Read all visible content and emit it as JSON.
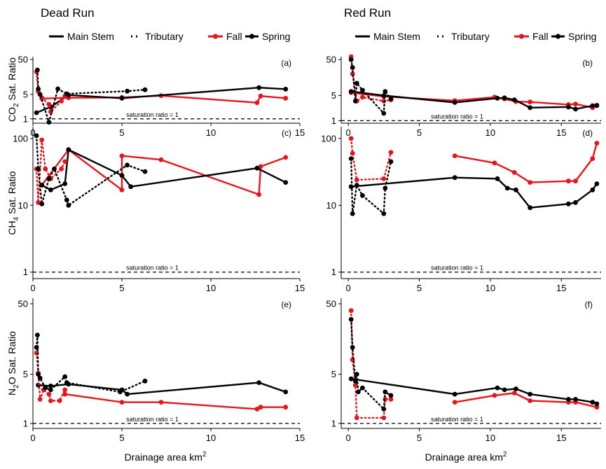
{
  "columns": [
    {
      "title": "Dead Run"
    },
    {
      "title": "Red Run"
    }
  ],
  "legend": {
    "main_stem": "Main Stem",
    "tributary": "Tributary",
    "fall": "Fall",
    "spring": "Spring"
  },
  "colors": {
    "fall": "#e8141b",
    "spring": "#000000"
  },
  "reference_label": "saturation ratio = 1",
  "xlabel": "Drainage area km",
  "xlabel_sup": "2",
  "ylabels": [
    {
      "pre": "CO",
      "sub": "2",
      "post": " Sat. Ratio"
    },
    {
      "pre": "CH",
      "sub": "4",
      "post": " Sat. Ratio"
    },
    {
      "pre": "N",
      "sub": "2",
      "post": "O Sat. Ratio"
    }
  ],
  "chart_data": [
    {
      "type": "line",
      "panel": "(a)",
      "site": "Dead Run",
      "gas": "CO2",
      "y_scale": "log",
      "yticks": [
        1,
        5,
        50
      ],
      "xticks": [
        0,
        5,
        10,
        15
      ],
      "xlim": [
        0,
        15
      ],
      "ylim": [
        0.75,
        60
      ],
      "series": [
        {
          "name": "Fall",
          "reach": "Main Stem",
          "points": [
            [
              0.5,
              3.8
            ],
            [
              2.0,
              4.0
            ],
            [
              5.0,
              4.1
            ],
            [
              7.2,
              4.6
            ],
            [
              12.6,
              2.9
            ],
            [
              12.8,
              4.5
            ],
            [
              14.2,
              3.9
            ]
          ]
        },
        {
          "name": "Spring",
          "reach": "Main Stem",
          "points": [
            [
              0.2,
              1.5
            ],
            [
              1.0,
              2.2
            ],
            [
              2.0,
              4.8
            ],
            [
              5.0,
              3.9
            ],
            [
              12.7,
              7.8
            ],
            [
              14.2,
              7.1
            ]
          ]
        },
        {
          "name": "Fall",
          "reach": "Tributary",
          "points": [
            [
              0.2,
              22
            ],
            [
              0.3,
              6.0
            ],
            [
              0.5,
              4.0
            ],
            [
              0.9,
              2.6
            ],
            [
              1.0,
              1.6
            ],
            [
              1.6,
              3.2
            ],
            [
              1.8,
              4.5
            ]
          ]
        },
        {
          "name": "Spring",
          "reach": "Tributary",
          "points": [
            [
              0.25,
              25
            ],
            [
              0.3,
              7.2
            ],
            [
              0.4,
              5.0
            ],
            [
              0.9,
              0.8
            ],
            [
              1.4,
              7.2
            ],
            [
              1.9,
              5.2
            ],
            [
              5.3,
              6.2
            ],
            [
              6.3,
              6.8
            ]
          ]
        }
      ]
    },
    {
      "type": "line",
      "panel": "(b)",
      "site": "Red Run",
      "gas": "CO2",
      "y_scale": "log",
      "yticks": [
        1,
        5,
        50
      ],
      "xticks": [
        0,
        5,
        10,
        15
      ],
      "xlim": [
        -0.5,
        17.8
      ],
      "ylim": [
        0.85,
        60
      ],
      "series": [
        {
          "name": "Fall",
          "reach": "Main Stem",
          "points": [
            [
              0.2,
              6.0
            ],
            [
              2.5,
              4.7
            ],
            [
              7.5,
              3.6
            ],
            [
              10.3,
              4.5
            ],
            [
              11.0,
              4.0
            ],
            [
              11.8,
              3.4
            ],
            [
              12.8,
              3.3
            ],
            [
              15.5,
              2.8
            ],
            [
              16.0,
              2.9
            ],
            [
              17.2,
              2.3
            ],
            [
              17.5,
              2.7
            ]
          ]
        },
        {
          "name": "Spring",
          "reach": "Main Stem",
          "points": [
            [
              0.2,
              6.5
            ],
            [
              2.5,
              5.0
            ],
            [
              7.5,
              3.2
            ],
            [
              10.5,
              4.2
            ],
            [
              11.0,
              4.3
            ],
            [
              11.7,
              3.8
            ],
            [
              12.8,
              2.3
            ],
            [
              15.5,
              2.4
            ],
            [
              16.0,
              2.1
            ],
            [
              17.2,
              2.6
            ],
            [
              17.5,
              2.6
            ]
          ]
        },
        {
          "name": "Fall",
          "reach": "Tributary",
          "points": [
            [
              0.2,
              60
            ],
            [
              0.3,
              20
            ],
            [
              0.6,
              3.5
            ],
            [
              1.0,
              4.5
            ],
            [
              2.5,
              3.5
            ],
            [
              3.0,
              3.8
            ]
          ]
        },
        {
          "name": "Spring",
          "reach": "Tributary",
          "points": [
            [
              0.2,
              50
            ],
            [
              0.3,
              30
            ],
            [
              0.5,
              3.5
            ],
            [
              0.6,
              11
            ],
            [
              1.0,
              7.0
            ],
            [
              2.5,
              1.6
            ],
            [
              2.6,
              6.5
            ],
            [
              3.0,
              4.0
            ]
          ]
        }
      ]
    },
    {
      "type": "line",
      "panel": "(c)",
      "site": "Dead Run",
      "gas": "CH4",
      "y_scale": "log",
      "yticks": [
        1,
        10,
        100
      ],
      "xticks": [
        0,
        5,
        10,
        15
      ],
      "xlim": [
        0,
        15
      ],
      "ylim": [
        0.8,
        150
      ],
      "series": [
        {
          "name": "Fall",
          "reach": "Main Stem",
          "points": [
            [
              0.5,
              20
            ],
            [
              2.0,
              68
            ],
            [
              5.0,
              17
            ],
            [
              5.0,
              55
            ],
            [
              7.2,
              48
            ],
            [
              12.7,
              14.5
            ],
            [
              12.8,
              38
            ],
            [
              14.2,
              52
            ]
          ]
        },
        {
          "name": "Spring",
          "reach": "Main Stem",
          "points": [
            [
              0.5,
              20
            ],
            [
              1.0,
              17
            ],
            [
              1.8,
              21
            ],
            [
              2.0,
              68
            ],
            [
              5.0,
              28
            ],
            [
              5.5,
              19
            ],
            [
              12.6,
              36
            ],
            [
              14.2,
              22
            ]
          ]
        },
        {
          "name": "Fall",
          "reach": "Tributary",
          "points": [
            [
              0.2,
              35
            ],
            [
              0.3,
              11
            ],
            [
              0.5,
              95
            ],
            [
              0.7,
              35
            ],
            [
              1.0,
              25
            ],
            [
              1.6,
              35
            ],
            [
              1.8,
              45
            ]
          ]
        },
        {
          "name": "Spring",
          "reach": "Tributary",
          "points": [
            [
              0.2,
              110
            ],
            [
              0.3,
              35
            ],
            [
              0.5,
              10.5
            ],
            [
              0.9,
              25
            ],
            [
              1.2,
              35
            ],
            [
              1.9,
              12
            ],
            [
              2.0,
              10
            ],
            [
              5.3,
              40
            ],
            [
              6.3,
              32
            ]
          ]
        }
      ]
    },
    {
      "type": "line",
      "panel": "(d)",
      "site": "Red Run",
      "gas": "CH4",
      "y_scale": "log",
      "yticks": [
        1,
        10,
        100
      ],
      "xticks": [
        0,
        5,
        10,
        15
      ],
      "xlim": [
        -0.5,
        17.8
      ],
      "ylim": [
        0.8,
        150
      ],
      "series": [
        {
          "name": "Fall",
          "reach": "Main Stem",
          "points": [
            [
              7.5,
              55
            ],
            [
              10.3,
              43
            ],
            [
              11.7,
              31
            ],
            [
              12.8,
              22
            ],
            [
              15.5,
              23
            ],
            [
              16.0,
              23
            ],
            [
              17.2,
              50
            ],
            [
              17.5,
              85
            ]
          ]
        },
        {
          "name": "Spring",
          "reach": "Main Stem",
          "points": [
            [
              0.2,
              19
            ],
            [
              7.5,
              26
            ],
            [
              10.5,
              25
            ],
            [
              11.2,
              18
            ],
            [
              11.8,
              17
            ],
            [
              12.8,
              9.2
            ],
            [
              15.5,
              10.5
            ],
            [
              16.0,
              11
            ],
            [
              17.2,
              17
            ],
            [
              17.5,
              21
            ]
          ]
        },
        {
          "name": "Fall",
          "reach": "Tributary",
          "points": [
            [
              0.2,
              100
            ],
            [
              0.3,
              60
            ],
            [
              0.6,
              24
            ],
            [
              2.5,
              25
            ],
            [
              3.0,
              62
            ]
          ]
        },
        {
          "name": "Spring",
          "reach": "Tributary",
          "points": [
            [
              0.2,
              50
            ],
            [
              0.3,
              7.5
            ],
            [
              0.6,
              20
            ],
            [
              1.0,
              14
            ],
            [
              2.5,
              7.5
            ],
            [
              2.6,
              18
            ],
            [
              3.0,
              45
            ]
          ]
        }
      ]
    },
    {
      "type": "line",
      "panel": "(e)",
      "site": "Dead Run",
      "gas": "N2O",
      "y_scale": "log",
      "yticks": [
        1,
        5,
        50
      ],
      "xticks": [
        0,
        5,
        10,
        15
      ],
      "xlim": [
        0,
        15
      ],
      "ylim": [
        0.85,
        60
      ],
      "series": [
        {
          "name": "Fall",
          "reach": "Main Stem",
          "points": [
            [
              1.8,
              2.6
            ],
            [
              5.0,
              2.0
            ],
            [
              7.2,
              2.0
            ],
            [
              12.6,
              1.6
            ],
            [
              12.8,
              1.7
            ],
            [
              14.2,
              1.7
            ]
          ]
        },
        {
          "name": "Spring",
          "reach": "Main Stem",
          "points": [
            [
              0.3,
              3.5
            ],
            [
              1.0,
              3.4
            ],
            [
              2.0,
              3.6
            ],
            [
              5.0,
              3.0
            ],
            [
              5.3,
              2.6
            ],
            [
              12.7,
              3.8
            ],
            [
              14.2,
              2.8
            ]
          ]
        },
        {
          "name": "Fall",
          "reach": "Tributary",
          "points": [
            [
              0.2,
              10
            ],
            [
              0.3,
              5.2
            ],
            [
              0.4,
              2.2
            ],
            [
              0.6,
              3.0
            ],
            [
              0.9,
              2.6
            ],
            [
              1.0,
              2.1
            ],
            [
              1.5,
              2.1
            ],
            [
              1.8,
              3.0
            ]
          ]
        },
        {
          "name": "Spring",
          "reach": "Tributary",
          "points": [
            [
              0.2,
              12
            ],
            [
              0.25,
              18
            ],
            [
              0.3,
              5.0
            ],
            [
              0.4,
              4.4
            ],
            [
              0.7,
              3.2
            ],
            [
              1.0,
              3.0
            ],
            [
              1.8,
              4.6
            ],
            [
              1.9,
              3.8
            ],
            [
              4.9,
              2.8
            ],
            [
              6.3,
              4.0
            ]
          ]
        }
      ]
    },
    {
      "type": "line",
      "panel": "(f)",
      "site": "Red Run",
      "gas": "N2O",
      "y_scale": "log",
      "yticks": [
        1,
        5,
        50
      ],
      "xticks": [
        0,
        5,
        10,
        15
      ],
      "xlim": [
        -0.5,
        17.8
      ],
      "ylim": [
        0.85,
        60
      ],
      "series": [
        {
          "name": "Fall",
          "reach": "Main Stem",
          "points": [
            [
              7.5,
              2.0
            ],
            [
              10.3,
              2.5
            ],
            [
              11.7,
              2.7
            ],
            [
              12.8,
              2.1
            ],
            [
              15.5,
              2.0
            ],
            [
              16.0,
              2.0
            ],
            [
              17.5,
              1.7
            ]
          ]
        },
        {
          "name": "Spring",
          "reach": "Main Stem",
          "points": [
            [
              0.2,
              4.3
            ],
            [
              7.5,
              2.6
            ],
            [
              10.5,
              3.2
            ],
            [
              11.0,
              3.0
            ],
            [
              11.8,
              3.1
            ],
            [
              12.8,
              2.6
            ],
            [
              15.5,
              2.2
            ],
            [
              16.0,
              2.2
            ],
            [
              17.2,
              2.0
            ],
            [
              17.5,
              1.9
            ]
          ]
        },
        {
          "name": "Fall",
          "reach": "Tributary",
          "points": [
            [
              0.2,
              40
            ],
            [
              0.3,
              8.0
            ],
            [
              0.5,
              3.5
            ],
            [
              0.6,
              1.2
            ],
            [
              2.5,
              1.2
            ],
            [
              2.6,
              2.2
            ],
            [
              3.0,
              2.2
            ]
          ]
        },
        {
          "name": "Spring",
          "reach": "Tributary",
          "points": [
            [
              0.2,
              30
            ],
            [
              0.3,
              12
            ],
            [
              0.5,
              4.0
            ],
            [
              0.6,
              5.0
            ],
            [
              0.7,
              2.8
            ],
            [
              1.0,
              3.2
            ],
            [
              2.5,
              1.6
            ],
            [
              2.6,
              2.8
            ],
            [
              3.0,
              2.5
            ]
          ]
        }
      ]
    }
  ]
}
